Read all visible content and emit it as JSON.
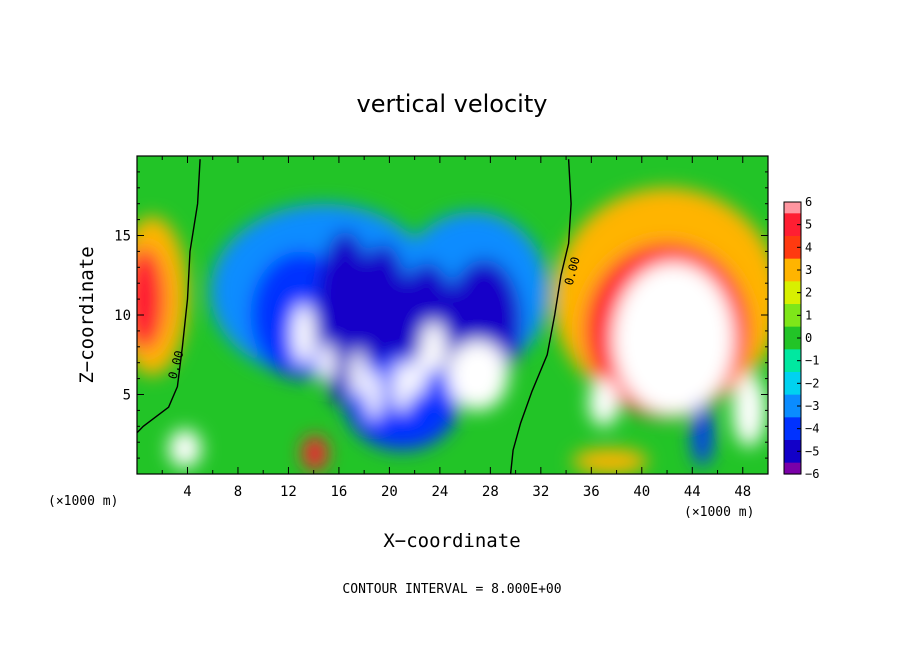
{
  "chart_data": {
    "type": "heatmap",
    "title": "vertical velocity",
    "xlabel": "X−coordinate",
    "ylabel": "Z−coordinate",
    "x_unit_left": "(×1000 m)",
    "x_unit_right": "(×1000 m)",
    "footer": "CONTOUR INTERVAL = 8.000E+00",
    "xlim": [
      0,
      50
    ],
    "ylim": [
      0,
      20
    ],
    "x_ticks": [
      4,
      8,
      12,
      16,
      20,
      24,
      28,
      32,
      36,
      40,
      44,
      48
    ],
    "y_ticks": [
      5,
      10,
      15
    ],
    "colorbar": {
      "ticks": [
        6,
        5,
        4,
        3,
        2,
        1,
        0,
        -1,
        -2,
        -3,
        -4,
        -5,
        -6
      ],
      "labels": [
        "6",
        "5",
        "4",
        "3",
        "2",
        "1",
        "0",
        "−1",
        "−2",
        "−3",
        "−4",
        "−5",
        "−6"
      ],
      "range": [
        -6,
        6
      ],
      "over_color": "#ffffff"
    },
    "contour_labels": [
      {
        "text": "0.00",
        "x": 3.4,
        "y": 6.8
      },
      {
        "text": "0.00",
        "x": 34.8,
        "y": 12.7
      }
    ],
    "zero_contours": [
      [
        [
          5.0,
          19.8
        ],
        [
          4.8,
          17
        ],
        [
          4.2,
          14
        ],
        [
          4.0,
          11
        ],
        [
          3.6,
          8
        ],
        [
          3.2,
          5.5
        ],
        [
          2.5,
          4.2
        ],
        [
          0.5,
          3.0
        ],
        [
          0.0,
          2.6
        ]
      ],
      [
        [
          34.2,
          19.8
        ],
        [
          34.4,
          17
        ],
        [
          34.2,
          14.5
        ],
        [
          33.6,
          12.5
        ],
        [
          33.1,
          10
        ],
        [
          32.5,
          7.5
        ],
        [
          31.3,
          5.2
        ],
        [
          30.4,
          3.2
        ],
        [
          29.8,
          1.5
        ],
        [
          29.6,
          0.0
        ]
      ]
    ],
    "cells": [
      {
        "x": 1.2,
        "y": 11.2,
        "rx": 2.8,
        "ry": 5.0,
        "v": 3.2
      },
      {
        "x": 0.6,
        "y": 11.0,
        "rx": 1.6,
        "ry": 3.2,
        "v": 4.6
      },
      {
        "x": 3.8,
        "y": 1.6,
        "rx": 1.3,
        "ry": 1.2,
        "v": 6.6
      },
      {
        "x": 14.1,
        "y": 1.3,
        "rx": 1.0,
        "ry": 1.1,
        "v": 5.4
      },
      {
        "x": 14.8,
        "y": 11.5,
        "rx": 9.0,
        "ry": 5.5,
        "v": -2.6
      },
      {
        "x": 26.6,
        "y": 11.5,
        "rx": 6.0,
        "ry": 5.0,
        "v": -2.5
      },
      {
        "x": 13.0,
        "y": 10.0,
        "rx": 4.0,
        "ry": 4.0,
        "v": -4.3
      },
      {
        "x": 16.5,
        "y": 9.8,
        "rx": 2.3,
        "ry": 5.5,
        "v": -4.8
      },
      {
        "x": 19.5,
        "y": 9.5,
        "rx": 2.2,
        "ry": 5.0,
        "v": -4.6
      },
      {
        "x": 23.0,
        "y": 8.8,
        "rx": 2.5,
        "ry": 4.5,
        "v": -4.9
      },
      {
        "x": 27.5,
        "y": 9.5,
        "rx": 3.0,
        "ry": 4.0,
        "v": -4.8
      },
      {
        "x": 21.0,
        "y": 4.5,
        "rx": 4.5,
        "ry": 3.0,
        "v": -4.0
      },
      {
        "x": 13.2,
        "y": 8.8,
        "rx": 0.9,
        "ry": 1.9,
        "v": -9
      },
      {
        "x": 15.0,
        "y": 7.0,
        "rx": 0.7,
        "ry": 1.2,
        "v": -9
      },
      {
        "x": 17.5,
        "y": 6.3,
        "rx": 0.6,
        "ry": 1.5,
        "v": -9
      },
      {
        "x": 18.8,
        "y": 5.0,
        "rx": 0.6,
        "ry": 1.6,
        "v": -9
      },
      {
        "x": 21.0,
        "y": 5.5,
        "rx": 0.7,
        "ry": 1.6,
        "v": -9
      },
      {
        "x": 22.3,
        "y": 6.2,
        "rx": 0.6,
        "ry": 1.3,
        "v": -9
      },
      {
        "x": 23.5,
        "y": 8.0,
        "rx": 1.0,
        "ry": 1.6,
        "v": -9
      },
      {
        "x": 27.0,
        "y": 6.2,
        "rx": 2.4,
        "ry": 2.2,
        "v": -9
      },
      {
        "x": 42.0,
        "y": 11.0,
        "rx": 9.0,
        "ry": 7.0,
        "v": 2.8
      },
      {
        "x": 42.0,
        "y": 9.0,
        "rx": 6.5,
        "ry": 5.5,
        "v": 5.0
      },
      {
        "x": 42.5,
        "y": 8.5,
        "rx": 4.8,
        "ry": 4.8,
        "v": 9
      },
      {
        "x": 37.0,
        "y": 4.5,
        "rx": 1.2,
        "ry": 1.5,
        "v": 9
      },
      {
        "x": 48.5,
        "y": 4.0,
        "rx": 1.3,
        "ry": 2.3,
        "v": 9
      },
      {
        "x": 44.8,
        "y": 2.5,
        "rx": 0.8,
        "ry": 2.0,
        "v": -4.2
      },
      {
        "x": 37.5,
        "y": 0.8,
        "rx": 3.0,
        "ry": 0.8,
        "v": 3.0
      }
    ]
  }
}
